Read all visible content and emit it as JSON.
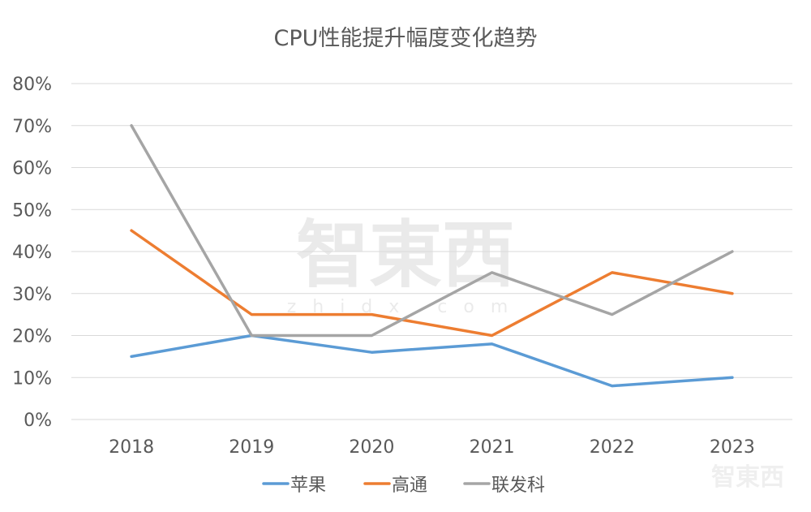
{
  "chart_data": {
    "type": "line",
    "title": "CPU性能提升幅度变化趋势",
    "categories": [
      "2018",
      "2019",
      "2020",
      "2021",
      "2022",
      "2023"
    ],
    "ylim": [
      0,
      80
    ],
    "yticks": [
      "0%",
      "10%",
      "20%",
      "30%",
      "40%",
      "50%",
      "60%",
      "70%",
      "80%"
    ],
    "ytick_values": [
      0,
      10,
      20,
      30,
      40,
      50,
      60,
      70,
      80
    ],
    "grid": true,
    "legend_position": "bottom",
    "series": [
      {
        "name": "苹果",
        "color": "#5B9BD5",
        "values": [
          15,
          20,
          16,
          18,
          8,
          10
        ]
      },
      {
        "name": "高通",
        "color": "#ED7D31",
        "values": [
          45,
          25,
          25,
          20,
          35,
          30
        ]
      },
      {
        "name": "联发科",
        "color": "#A5A5A5",
        "values": [
          70,
          20,
          20,
          35,
          25,
          40
        ]
      }
    ]
  },
  "watermark": {
    "logo": "智東西",
    "url": "zhidx.com"
  }
}
